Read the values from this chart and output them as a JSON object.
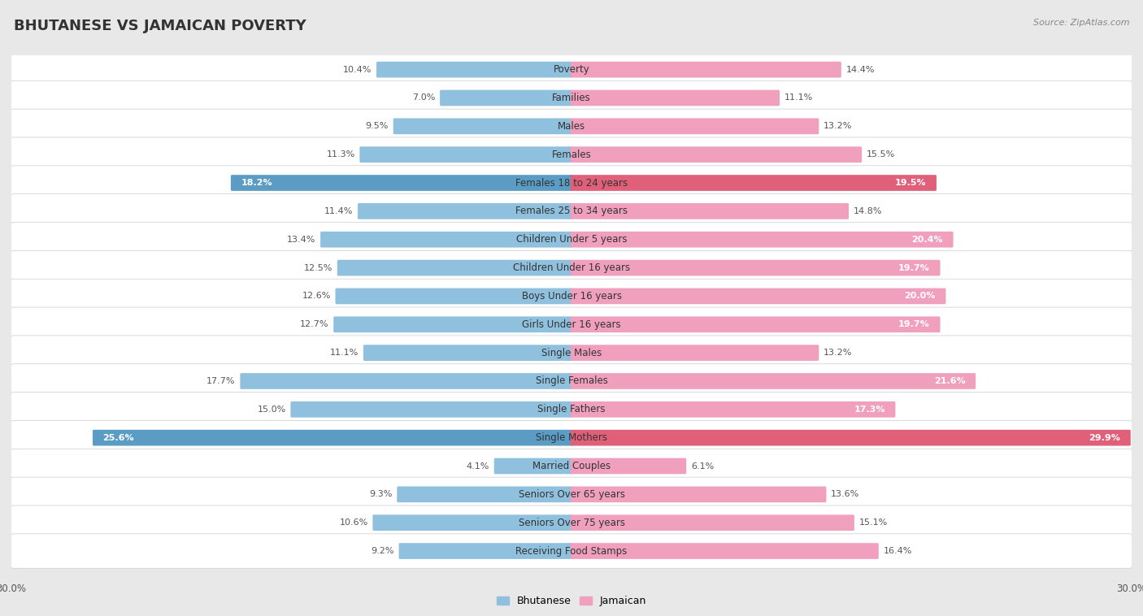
{
  "title": "BHUTANESE VS JAMAICAN POVERTY",
  "source": "Source: ZipAtlas.com",
  "categories": [
    "Poverty",
    "Families",
    "Males",
    "Females",
    "Females 18 to 24 years",
    "Females 25 to 34 years",
    "Children Under 5 years",
    "Children Under 16 years",
    "Boys Under 16 years",
    "Girls Under 16 years",
    "Single Males",
    "Single Females",
    "Single Fathers",
    "Single Mothers",
    "Married Couples",
    "Seniors Over 65 years",
    "Seniors Over 75 years",
    "Receiving Food Stamps"
  ],
  "bhutanese": [
    10.4,
    7.0,
    9.5,
    11.3,
    18.2,
    11.4,
    13.4,
    12.5,
    12.6,
    12.7,
    11.1,
    17.7,
    15.0,
    25.6,
    4.1,
    9.3,
    10.6,
    9.2
  ],
  "jamaican": [
    14.4,
    11.1,
    13.2,
    15.5,
    19.5,
    14.8,
    20.4,
    19.7,
    20.0,
    19.7,
    13.2,
    21.6,
    17.3,
    29.9,
    6.1,
    13.6,
    15.1,
    16.4
  ],
  "bhutanese_color": "#8fc0de",
  "jamaican_color": "#f0a0bc",
  "bhutanese_highlight_color": "#5b9cc4",
  "jamaican_highlight_color": "#e0607a",
  "highlight_rows": [
    4,
    13
  ],
  "xlim": 30.0,
  "bg_color": "#e8e8e8",
  "row_bg": "#ffffff",
  "legend_bhutanese": "Bhutanese",
  "legend_jamaican": "Jamaican",
  "title_fontsize": 13,
  "label_fontsize": 8.5,
  "value_fontsize": 8.0
}
